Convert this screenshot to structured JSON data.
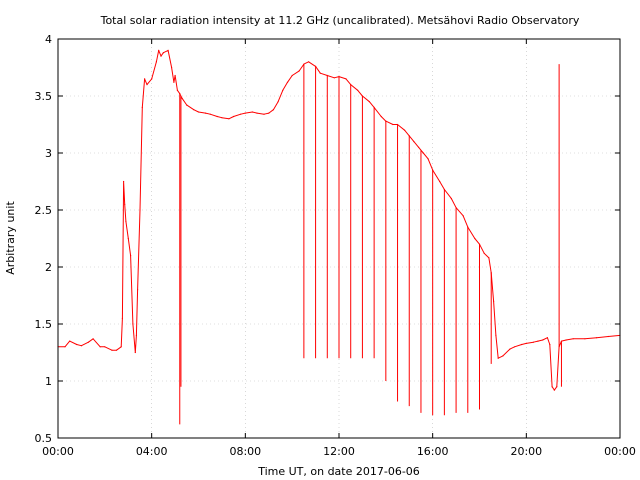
{
  "chart_data": {
    "type": "line",
    "title": "Total solar radiation intensity at 11.2 GHz (uncalibrated). Metsähovi Radio Observatory",
    "xlabel": "Time UT, on date 2017-06-06",
    "ylabel": "Arbitrary unit",
    "xlim": [
      0,
      24
    ],
    "ylim": [
      0.5,
      4
    ],
    "x_ticks": [
      0,
      4,
      8,
      12,
      16,
      20,
      24
    ],
    "x_tick_labels": [
      "00:00",
      "04:00",
      "08:00",
      "12:00",
      "16:00",
      "20:00",
      "00:00"
    ],
    "y_ticks": [
      0.5,
      1,
      1.5,
      2,
      2.5,
      3,
      3.5,
      4
    ],
    "y_tick_labels": [
      "0.5",
      "1",
      "1.5",
      "2",
      "2.5",
      "3",
      "3.5",
      "4"
    ],
    "grid": true,
    "series": [
      {
        "color": "#ff0000",
        "x": [
          0.0,
          0.3,
          0.5,
          0.8,
          1.0,
          1.3,
          1.5,
          1.8,
          2.0,
          2.3,
          2.5,
          2.7,
          2.75,
          2.8,
          2.85,
          2.9,
          3.0,
          3.1,
          3.2,
          3.3,
          3.35,
          3.4,
          3.5,
          3.6,
          3.7,
          3.8,
          4.0,
          4.2,
          4.3,
          4.4,
          4.5,
          4.7,
          4.85,
          4.95,
          5.0,
          5.1,
          5.2,
          5.3,
          5.5,
          5.8,
          6.0,
          6.3,
          6.5,
          6.8,
          7.0,
          7.3,
          7.5,
          7.8,
          8.0,
          8.3,
          8.5,
          8.8,
          9.0,
          9.2,
          9.4,
          9.6,
          9.8,
          10.0,
          10.3,
          10.5,
          10.7,
          11.0,
          11.2,
          11.5,
          11.8,
          12.0,
          12.3,
          12.5,
          12.8,
          13.0,
          13.3,
          13.5,
          13.8,
          14.0,
          14.3,
          14.5,
          14.8,
          15.0,
          15.2,
          15.4,
          15.6,
          15.8,
          16.0,
          16.3,
          16.5,
          16.8,
          17.0,
          17.3,
          17.5,
          17.8,
          18.0,
          18.2,
          18.4,
          18.5,
          18.6,
          18.7,
          18.8,
          19.0,
          19.3,
          19.5,
          19.8,
          20.0,
          20.3,
          20.5,
          20.7,
          20.9,
          21.0,
          21.1,
          21.2,
          21.3,
          21.4,
          21.5,
          21.7,
          22.0,
          22.5,
          23.0,
          23.5,
          24.0
        ],
        "values": [
          1.3,
          1.3,
          1.35,
          1.32,
          1.31,
          1.34,
          1.37,
          1.3,
          1.3,
          1.27,
          1.27,
          1.3,
          1.55,
          2.75,
          2.55,
          2.4,
          2.25,
          2.1,
          1.5,
          1.25,
          1.4,
          1.8,
          2.5,
          3.4,
          3.65,
          3.6,
          3.65,
          3.8,
          3.9,
          3.85,
          3.88,
          3.9,
          3.75,
          3.62,
          3.68,
          3.55,
          3.52,
          3.48,
          3.42,
          3.38,
          3.36,
          3.35,
          3.34,
          3.32,
          3.31,
          3.3,
          3.32,
          3.34,
          3.35,
          3.36,
          3.35,
          3.34,
          3.35,
          3.38,
          3.45,
          3.55,
          3.62,
          3.68,
          3.72,
          3.78,
          3.8,
          3.76,
          3.7,
          3.68,
          3.66,
          3.67,
          3.65,
          3.6,
          3.55,
          3.5,
          3.45,
          3.4,
          3.32,
          3.28,
          3.25,
          3.25,
          3.2,
          3.15,
          3.1,
          3.05,
          3.0,
          2.95,
          2.85,
          2.75,
          2.68,
          2.6,
          2.52,
          2.45,
          2.35,
          2.25,
          2.2,
          2.12,
          2.08,
          1.95,
          1.7,
          1.4,
          1.2,
          1.22,
          1.28,
          1.3,
          1.32,
          1.33,
          1.34,
          1.35,
          1.36,
          1.38,
          1.32,
          0.95,
          0.92,
          0.95,
          1.3,
          1.35,
          1.36,
          1.37,
          1.37,
          1.38,
          1.39,
          1.4
        ]
      }
    ],
    "spikes": [
      {
        "x": 2.8,
        "y": 2.75
      },
      {
        "x": 5.2,
        "y": 0.62
      },
      {
        "x": 5.25,
        "y": 0.95
      },
      {
        "x": 10.5,
        "y": 1.2
      },
      {
        "x": 11.0,
        "y": 1.2
      },
      {
        "x": 11.5,
        "y": 1.2
      },
      {
        "x": 12.0,
        "y": 1.2
      },
      {
        "x": 12.5,
        "y": 1.2
      },
      {
        "x": 13.0,
        "y": 1.2
      },
      {
        "x": 13.5,
        "y": 1.2
      },
      {
        "x": 14.0,
        "y": 1.0
      },
      {
        "x": 14.5,
        "y": 0.82
      },
      {
        "x": 15.0,
        "y": 0.78
      },
      {
        "x": 15.5,
        "y": 0.72
      },
      {
        "x": 16.0,
        "y": 0.7
      },
      {
        "x": 16.5,
        "y": 0.7
      },
      {
        "x": 17.0,
        "y": 0.72
      },
      {
        "x": 17.5,
        "y": 0.72
      },
      {
        "x": 18.0,
        "y": 0.75
      },
      {
        "x": 18.5,
        "y": 1.15
      },
      {
        "x": 21.4,
        "y": 3.78
      },
      {
        "x": 21.5,
        "y": 0.95
      }
    ]
  }
}
